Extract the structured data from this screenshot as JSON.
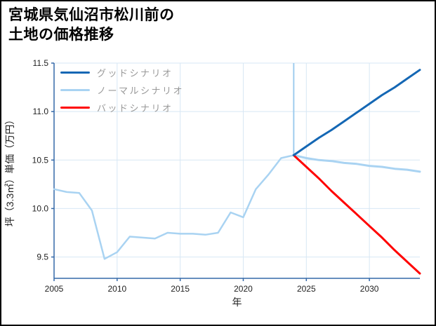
{
  "page": {
    "title_line1": "宮城県気仙沼市松川前の",
    "title_line2": "土地の価格推移"
  },
  "chart_data": {
    "type": "line",
    "title": "宮城県気仙沼市松川前の土地の価格推移",
    "xlabel": "年",
    "ylabel": "坪（3.3㎡）単価（万円）",
    "xlim": [
      2005,
      2034
    ],
    "ylim": [
      9.28,
      11.5
    ],
    "xticks": [
      2005,
      2010,
      2015,
      2020,
      2025,
      2030
    ],
    "yticks": [
      9.5,
      10.0,
      10.5,
      11.0,
      11.5
    ],
    "grid": true,
    "legend_position": "top-left",
    "marker_year": 2024,
    "colors": {
      "good": "#1467b4",
      "normal": "#a9d3f2",
      "bad": "#ff0000",
      "grid": "#d7e7f4",
      "spine": "#3468a8",
      "marker": "#9fccee",
      "tick_text": "#222222",
      "legend_text": "#999999"
    },
    "series": [
      {
        "name": "price-history",
        "label": null,
        "color": "#a9d3f2",
        "width": 2.5,
        "x": [
          2005,
          2006,
          2007,
          2008,
          2009,
          2010,
          2011,
          2012,
          2013,
          2014,
          2015,
          2016,
          2017,
          2018,
          2019,
          2020,
          2021,
          2022,
          2023,
          2024
        ],
        "y": [
          10.2,
          10.17,
          10.16,
          9.98,
          9.48,
          9.55,
          9.71,
          9.7,
          9.69,
          9.75,
          9.74,
          9.74,
          9.73,
          9.75,
          9.96,
          9.91,
          10.2,
          10.35,
          10.52,
          10.55
        ]
      },
      {
        "name": "good-scenario",
        "label": "グッドシナリオ",
        "color": "#1467b4",
        "width": 3,
        "x": [
          2024,
          2025,
          2026,
          2027,
          2028,
          2029,
          2030,
          2031,
          2032,
          2033,
          2034
        ],
        "y": [
          10.55,
          10.64,
          10.73,
          10.81,
          10.9,
          10.99,
          11.08,
          11.17,
          11.25,
          11.34,
          11.43
        ]
      },
      {
        "name": "normal-scenario",
        "label": "ノーマルシナリオ",
        "color": "#a9d3f2",
        "width": 3,
        "x": [
          2024,
          2025,
          2026,
          2027,
          2028,
          2029,
          2030,
          2031,
          2032,
          2033,
          2034
        ],
        "y": [
          10.55,
          10.52,
          10.5,
          10.49,
          10.47,
          10.46,
          10.44,
          10.43,
          10.41,
          10.4,
          10.38
        ]
      },
      {
        "name": "bad-scenario",
        "label": "バッドシナリオ",
        "color": "#ff0000",
        "width": 3,
        "x": [
          2024,
          2025,
          2026,
          2027,
          2028,
          2029,
          2030,
          2031,
          2032,
          2033,
          2034
        ],
        "y": [
          10.55,
          10.43,
          10.31,
          10.18,
          10.06,
          9.94,
          9.82,
          9.7,
          9.57,
          9.45,
          9.33
        ]
      }
    ]
  }
}
